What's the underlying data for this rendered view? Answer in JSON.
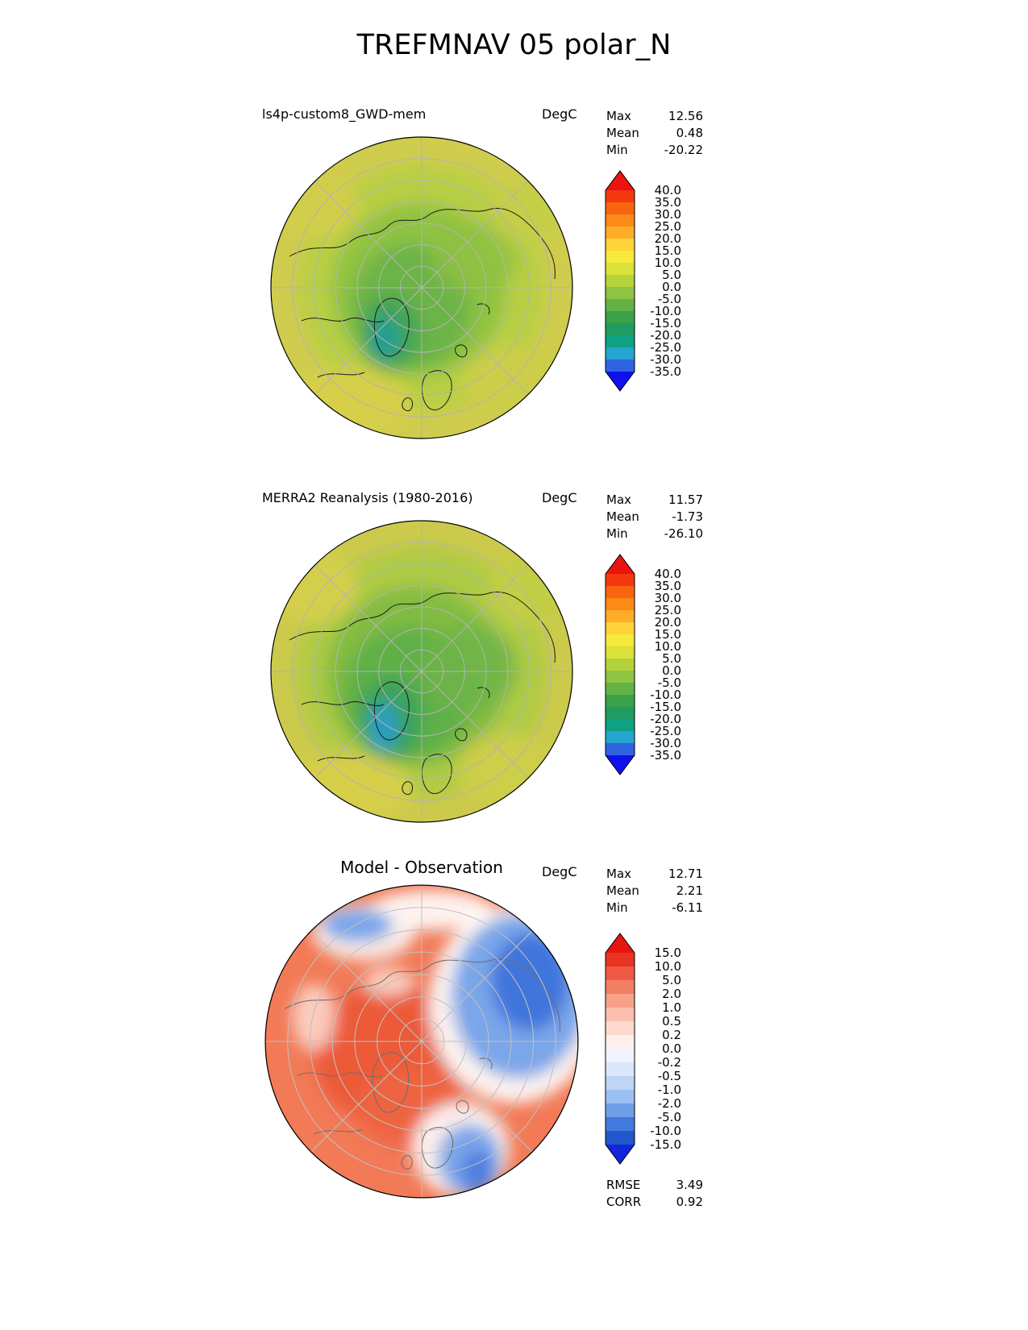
{
  "title": "TREFMNAV 05 polar_N",
  "panels": [
    {
      "title": "ls4p-custom8_GWD-mem",
      "units": "DegC",
      "stats": [
        {
          "label": "Max",
          "value": "12.56"
        },
        {
          "label": "Mean",
          "value": "0.48"
        },
        {
          "label": "Min",
          "value": "-20.22"
        }
      ],
      "colorbar": {
        "ticks": [
          "40.0",
          "35.0",
          "30.0",
          "25.0",
          "20.0",
          "15.0",
          "10.0",
          "5.0",
          "0.0",
          "-5.0",
          "-10.0",
          "-15.0",
          "-20.0",
          "-25.0",
          "-30.0",
          "-35.0"
        ],
        "segment_colors": [
          "#f5380e",
          "#fa6410",
          "#fc8a16",
          "#fdad28",
          "#fed337",
          "#f6ea3b",
          "#d8e238",
          "#b4d23c",
          "#8fc342",
          "#63b246",
          "#3aa24b",
          "#1f9c60",
          "#0ea184",
          "#25a5cf",
          "#2f63e0"
        ],
        "over_color": "#ea1310",
        "under_color": "#1010ee"
      }
    },
    {
      "title": "MERRA2 Reanalysis (1980-2016)",
      "units": "DegC",
      "stats": [
        {
          "label": "Max",
          "value": "11.57"
        },
        {
          "label": "Mean",
          "value": "-1.73"
        },
        {
          "label": "Min",
          "value": "-26.10"
        }
      ],
      "colorbar": {
        "ticks": [
          "40.0",
          "35.0",
          "30.0",
          "25.0",
          "20.0",
          "15.0",
          "10.0",
          "5.0",
          "0.0",
          "-5.0",
          "-10.0",
          "-15.0",
          "-20.0",
          "-25.0",
          "-30.0",
          "-35.0"
        ],
        "segment_colors": [
          "#f5380e",
          "#fa6410",
          "#fc8a16",
          "#fdad28",
          "#fed337",
          "#f6ea3b",
          "#d8e238",
          "#b4d23c",
          "#8fc342",
          "#63b246",
          "#3aa24b",
          "#1f9c60",
          "#0ea184",
          "#25a5cf",
          "#2f63e0"
        ],
        "over_color": "#ea1310",
        "under_color": "#1010ee"
      }
    },
    {
      "title": "Model - Observation",
      "units": "DegC",
      "stats": [
        {
          "label": "Max",
          "value": "12.71"
        },
        {
          "label": "Mean",
          "value": "2.21"
        },
        {
          "label": "Min",
          "value": "-6.11"
        }
      ],
      "colorbar": {
        "ticks": [
          "15.0",
          "10.0",
          "5.0",
          "2.0",
          "1.0",
          "0.5",
          "0.2",
          "0.0",
          "-0.2",
          "-0.5",
          "-1.0",
          "-2.0",
          "-5.0",
          "-10.0",
          "-15.0"
        ],
        "segment_colors": [
          "#e93323",
          "#ee5a43",
          "#f37f62",
          "#f7a189",
          "#fabfae",
          "#fcdacf",
          "#fef0ea",
          "#eff4fe",
          "#dbe7fb",
          "#bed5f8",
          "#9bc0f3",
          "#6f9fe9",
          "#4379dc",
          "#2256cd"
        ],
        "over_color": "#e6150f",
        "under_color": "#1127dd"
      }
    }
  ],
  "footer": {
    "stats": [
      {
        "label": "RMSE",
        "value": "3.49"
      },
      {
        "label": "CORR",
        "value": "0.92"
      }
    ]
  },
  "chart_data": [
    {
      "type": "heatmap",
      "subtype": "polar-stereographic-map-north",
      "title": "ls4p-custom8_GWD-mem",
      "figure_title": "TREFMNAV 05 polar_N",
      "units": "DegC",
      "stats": {
        "max": 12.56,
        "mean": 0.48,
        "min": -20.22
      },
      "colorbar_levels": [
        40.0,
        35.0,
        30.0,
        25.0,
        20.0,
        15.0,
        10.0,
        5.0,
        0.0,
        -5.0,
        -10.0,
        -15.0,
        -20.0,
        -25.0,
        -30.0,
        -35.0
      ],
      "colorbar_extend": "both",
      "legend_position": "right"
    },
    {
      "type": "heatmap",
      "subtype": "polar-stereographic-map-north",
      "title": "MERRA2 Reanalysis (1980-2016)",
      "units": "DegC",
      "stats": {
        "max": 11.57,
        "mean": -1.73,
        "min": -26.1
      },
      "colorbar_levels": [
        40.0,
        35.0,
        30.0,
        25.0,
        20.0,
        15.0,
        10.0,
        5.0,
        0.0,
        -5.0,
        -10.0,
        -15.0,
        -20.0,
        -25.0,
        -30.0,
        -35.0
      ],
      "colorbar_extend": "both",
      "legend_position": "right"
    },
    {
      "type": "heatmap",
      "subtype": "polar-stereographic-map-north",
      "title": "Model - Observation",
      "units": "DegC",
      "stats": {
        "max": 12.71,
        "mean": 2.21,
        "min": -6.11,
        "rmse": 3.49,
        "corr": 0.92
      },
      "colorbar_levels": [
        15.0,
        10.0,
        5.0,
        2.0,
        1.0,
        0.5,
        0.2,
        0.0,
        -0.2,
        -0.5,
        -1.0,
        -2.0,
        -5.0,
        -10.0,
        -15.0
      ],
      "colorbar_extend": "both",
      "legend_position": "right"
    }
  ]
}
